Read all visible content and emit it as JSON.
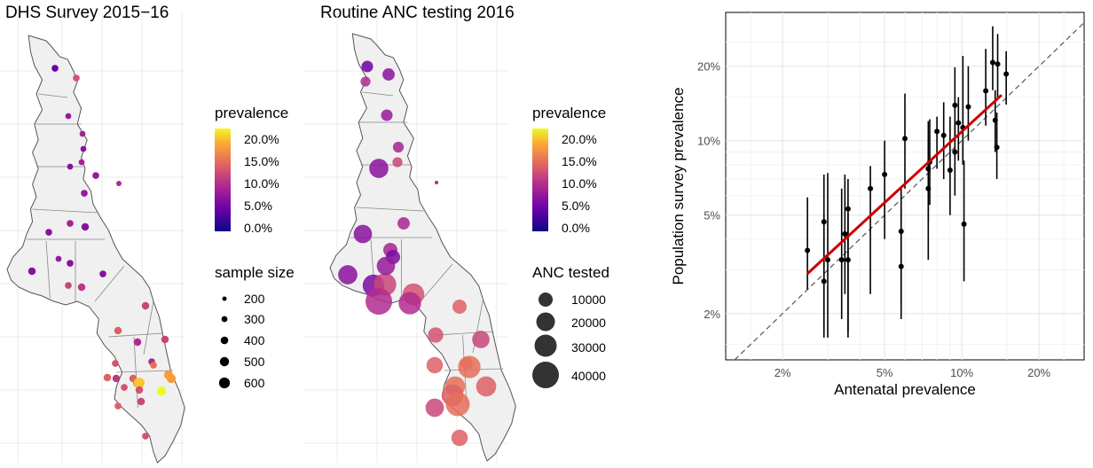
{
  "panels": {
    "dhs": {
      "title": "DHS Survey 2015−16"
    },
    "anc": {
      "title": "Routine ANC testing 2016"
    }
  },
  "legends": {
    "dhs": {
      "color_title": "prevalence",
      "color_labels": [
        "20.0%",
        "15.0%",
        "10.0%",
        "5.0%",
        "0.0%"
      ],
      "size_title": "sample size",
      "size_labels": [
        "200",
        "300",
        "400",
        "500",
        "600"
      ]
    },
    "anc": {
      "color_title": "prevalence",
      "color_labels": [
        "20.0%",
        "15.0%",
        "10.0%",
        "5.0%",
        "0.0%"
      ],
      "size_title": "ANC tested",
      "size_labels": [
        "10000",
        "20000",
        "30000",
        "40000"
      ]
    }
  },
  "colors": {
    "map_fill": "#f0f0f0",
    "map_stroke": "#555555",
    "fit_line": "#cc0000",
    "viridis_plasma_low": "#0d0887",
    "viridis_plasma_high": "#f0f921"
  },
  "chart_data": [
    {
      "type": "scatter",
      "subtype": "bubble-map",
      "title": "DHS Survey 2015−16",
      "color_scale": {
        "name": "prevalence",
        "range": [
          0,
          0.22
        ]
      },
      "size_scale": {
        "name": "sample size"
      },
      "points": [
        {
          "prev": 0.05,
          "size": 350
        },
        {
          "prev": 0.13,
          "size": 350
        },
        {
          "prev": 0.08,
          "size": 300
        },
        {
          "prev": 0.09,
          "size": 300
        },
        {
          "prev": 0.07,
          "size": 300
        },
        {
          "prev": 0.07,
          "size": 300
        },
        {
          "prev": 0.09,
          "size": 300
        },
        {
          "prev": 0.08,
          "size": 350
        },
        {
          "prev": 0.08,
          "size": 350
        },
        {
          "prev": 0.07,
          "size": 400
        },
        {
          "prev": 0.09,
          "size": 350
        },
        {
          "prev": 0.07,
          "size": 350
        },
        {
          "prev": 0.07,
          "size": 400
        },
        {
          "prev": 0.07,
          "size": 350
        },
        {
          "prev": 0.08,
          "size": 300
        },
        {
          "prev": 0.07,
          "size": 350
        },
        {
          "prev": 0.12,
          "size": 350
        },
        {
          "prev": 0.11,
          "size": 400
        },
        {
          "prev": 0.12,
          "size": 400
        },
        {
          "prev": 0.14,
          "size": 400
        },
        {
          "prev": 0.12,
          "size": 400
        },
        {
          "prev": 0.1,
          "size": 400
        },
        {
          "prev": 0.13,
          "size": 350
        },
        {
          "prev": 0.1,
          "size": 350
        },
        {
          "prev": 0.15,
          "size": 350
        },
        {
          "prev": 0.14,
          "size": 400
        },
        {
          "prev": 0.16,
          "size": 500
        },
        {
          "prev": 0.13,
          "size": 350
        },
        {
          "prev": 0.11,
          "size": 400
        },
        {
          "prev": 0.2,
          "size": 600
        },
        {
          "prev": 0.22,
          "size": 500
        },
        {
          "prev": 0.18,
          "size": 500
        },
        {
          "prev": 0.12,
          "size": 400
        },
        {
          "prev": 0.14,
          "size": 350
        },
        {
          "prev": 0.13,
          "size": 350
        },
        {
          "prev": 0.18,
          "size": 500
        },
        {
          "prev": 0.14,
          "size": 400
        },
        {
          "prev": 0.13,
          "size": 400
        }
      ]
    },
    {
      "type": "scatter",
      "subtype": "bubble-map",
      "title": "Routine ANC testing 2016",
      "color_scale": {
        "name": "prevalence",
        "range": [
          0,
          0.22
        ]
      },
      "size_scale": {
        "name": "ANC tested"
      },
      "points": [
        {
          "prev": 0.05,
          "size": 8000
        },
        {
          "prev": 0.07,
          "size": 9000
        },
        {
          "prev": 0.08,
          "size": 8000
        },
        {
          "prev": 0.09,
          "size": 7000
        },
        {
          "prev": 0.12,
          "size": 6000
        },
        {
          "prev": 0.1,
          "size": 6000
        },
        {
          "prev": 0.07,
          "size": 22000
        },
        {
          "prev": 0.09,
          "size": 9000
        },
        {
          "prev": 0.09,
          "size": 12000
        },
        {
          "prev": 0.07,
          "size": 20000
        },
        {
          "prev": 0.06,
          "size": 12000
        },
        {
          "prev": 0.07,
          "size": 22000
        },
        {
          "prev": 0.06,
          "size": 28000
        },
        {
          "prev": 0.12,
          "size": 30000
        },
        {
          "prev": 0.08,
          "size": 20000
        },
        {
          "prev": 0.1,
          "size": 42000
        },
        {
          "prev": 0.13,
          "size": 28000
        },
        {
          "prev": 0.1,
          "size": 30000
        },
        {
          "prev": 0.14,
          "size": 12000
        },
        {
          "prev": 0.13,
          "size": 14000
        },
        {
          "prev": 0.12,
          "size": 18000
        },
        {
          "prev": 0.15,
          "size": 9000
        },
        {
          "prev": 0.14,
          "size": 16000
        },
        {
          "prev": 0.15,
          "size": 30000
        },
        {
          "prev": 0.15,
          "size": 24000
        },
        {
          "prev": 0.14,
          "size": 24000
        },
        {
          "prev": 0.14,
          "size": 28000
        },
        {
          "prev": 0.15,
          "size": 34000
        },
        {
          "prev": 0.12,
          "size": 20000
        },
        {
          "prev": 0.14,
          "size": 16000
        }
      ]
    },
    {
      "type": "scatter",
      "subtype": "log-log with error bars and fitted line",
      "xlabel": "Antenatal prevalence",
      "ylabel": "Population survey prevalence",
      "x_scale": "log",
      "y_scale": "log",
      "xlim": [
        0.012,
        0.3
      ],
      "ylim": [
        0.013,
        0.33
      ],
      "x_ticks": [
        0.02,
        0.05,
        0.1,
        0.2
      ],
      "x_tick_labels": [
        "2%",
        "5%",
        "10%",
        "20%"
      ],
      "y_ticks": [
        0.02,
        0.05,
        0.1,
        0.2
      ],
      "y_tick_labels": [
        "2%",
        "5%",
        "10%",
        "20%"
      ],
      "grid": true,
      "reference_line": "y = x (dashed)",
      "fit_line": {
        "x": [
          0.025,
          0.143
        ],
        "y": [
          0.029,
          0.153
        ]
      },
      "points": [
        {
          "x": 0.025,
          "y": 0.036,
          "lo": 0.025,
          "hi": 0.059
        },
        {
          "x": 0.029,
          "y": 0.047,
          "lo": 0.016,
          "hi": 0.073
        },
        {
          "x": 0.029,
          "y": 0.027,
          "lo": 0.017,
          "hi": 0.051
        },
        {
          "x": 0.03,
          "y": 0.033,
          "lo": 0.016,
          "hi": 0.074
        },
        {
          "x": 0.034,
          "y": 0.033,
          "lo": 0.019,
          "hi": 0.064
        },
        {
          "x": 0.035,
          "y": 0.042,
          "lo": 0.024,
          "hi": 0.073
        },
        {
          "x": 0.036,
          "y": 0.053,
          "lo": 0.017,
          "hi": 0.07
        },
        {
          "x": 0.036,
          "y": 0.033,
          "lo": 0.016,
          "hi": 0.051
        },
        {
          "x": 0.044,
          "y": 0.064,
          "lo": 0.024,
          "hi": 0.079
        },
        {
          "x": 0.05,
          "y": 0.073,
          "lo": 0.04,
          "hi": 0.1
        },
        {
          "x": 0.058,
          "y": 0.031,
          "lo": 0.019,
          "hi": 0.054
        },
        {
          "x": 0.058,
          "y": 0.043,
          "lo": 0.022,
          "hi": 0.064
        },
        {
          "x": 0.06,
          "y": 0.102,
          "lo": 0.064,
          "hi": 0.155
        },
        {
          "x": 0.074,
          "y": 0.064,
          "lo": 0.033,
          "hi": 0.102
        },
        {
          "x": 0.074,
          "y": 0.077,
          "lo": 0.047,
          "hi": 0.12
        },
        {
          "x": 0.075,
          "y": 0.082,
          "lo": 0.055,
          "hi": 0.122
        },
        {
          "x": 0.08,
          "y": 0.109,
          "lo": 0.077,
          "hi": 0.125
        },
        {
          "x": 0.085,
          "y": 0.105,
          "lo": 0.07,
          "hi": 0.143
        },
        {
          "x": 0.09,
          "y": 0.076,
          "lo": 0.05,
          "hi": 0.125
        },
        {
          "x": 0.094,
          "y": 0.09,
          "lo": 0.06,
          "hi": 0.12
        },
        {
          "x": 0.094,
          "y": 0.139,
          "lo": 0.1,
          "hi": 0.198
        },
        {
          "x": 0.097,
          "y": 0.118,
          "lo": 0.083,
          "hi": 0.15
        },
        {
          "x": 0.101,
          "y": 0.113,
          "lo": 0.08,
          "hi": 0.22
        },
        {
          "x": 0.102,
          "y": 0.046,
          "lo": 0.027,
          "hi": 0.083
        },
        {
          "x": 0.106,
          "y": 0.137,
          "lo": 0.1,
          "hi": 0.2
        },
        {
          "x": 0.124,
          "y": 0.159,
          "lo": 0.115,
          "hi": 0.235
        },
        {
          "x": 0.132,
          "y": 0.207,
          "lo": 0.16,
          "hi": 0.29
        },
        {
          "x": 0.135,
          "y": 0.121,
          "lo": 0.09,
          "hi": 0.16
        },
        {
          "x": 0.137,
          "y": 0.094,
          "lo": 0.07,
          "hi": 0.13
        },
        {
          "x": 0.138,
          "y": 0.204,
          "lo": 0.15,
          "hi": 0.27
        },
        {
          "x": 0.149,
          "y": 0.186,
          "lo": 0.14,
          "hi": 0.23
        }
      ]
    }
  ]
}
